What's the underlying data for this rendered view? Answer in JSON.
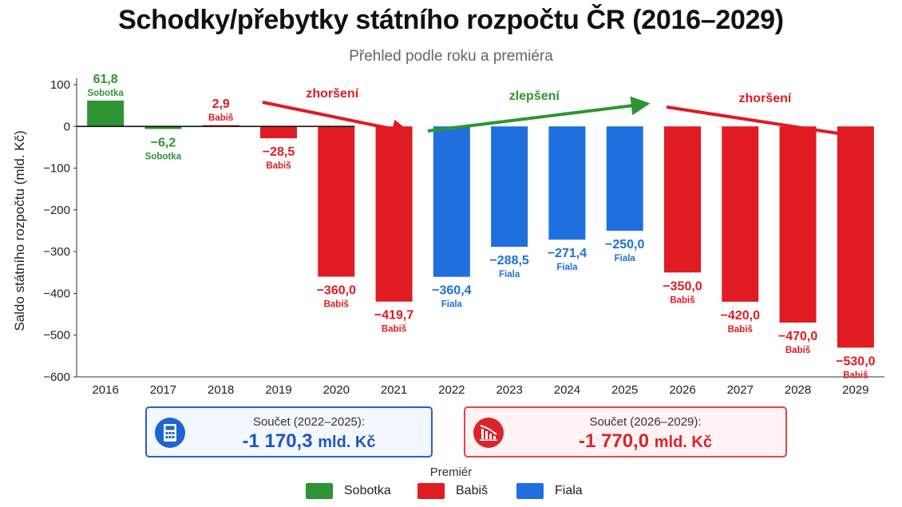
{
  "colors": {
    "Sobotka": "#2e9433",
    "Babiš": "#e01b22",
    "Fiala": "#1f6fde",
    "worse": "#e01b22",
    "better": "#2e9433"
  },
  "chart_data": {
    "type": "bar",
    "title": "Schodky/přebytky státního rozpočtu ČR (2016–2029)",
    "subtitle": "Přehled podle roku a premiéra",
    "ylabel": "Saldo státního rozpočtu (mld. Kč)",
    "xlabel": "",
    "ylim": [
      -600,
      100
    ],
    "yticks": [
      100,
      0,
      -100,
      -200,
      -300,
      -400,
      -500,
      -600
    ],
    "grid": false,
    "categories": [
      "2016",
      "2017",
      "2018",
      "2019",
      "2020",
      "2021",
      "2022",
      "2023",
      "2024",
      "2025",
      "2026",
      "2027",
      "2028",
      "2029"
    ],
    "values": [
      61.8,
      -6.2,
      2.9,
      -28.5,
      -360.0,
      -419.7,
      -360.4,
      -288.5,
      -271.4,
      -250.0,
      -350.0,
      -420.0,
      -470.0,
      -530.0
    ],
    "value_labels": [
      "61,8",
      "−6,2",
      "2,9",
      "−28,5",
      "−360,0",
      "−419,7",
      "−360,4",
      "−288,5",
      "−271,4",
      "−250,0",
      "−350,0",
      "−420,0",
      "−470,0",
      "−530,0"
    ],
    "premiers": [
      "Sobotka",
      "Sobotka",
      "Babiš",
      "Babiš",
      "Babiš",
      "Babiš",
      "Fiala",
      "Fiala",
      "Fiala",
      "Fiala",
      "Babiš",
      "Babiš",
      "Babiš",
      "Babiš"
    ],
    "legend": {
      "title": "Premiér",
      "placement": "bottom",
      "entries": [
        "Sobotka",
        "Babiš",
        "Fiala"
      ]
    },
    "annotations": [
      {
        "text": "zhoršení",
        "kind": "worse",
        "from": "2019",
        "to": "2021"
      },
      {
        "text": "zlepšení",
        "kind": "better",
        "from": "2022",
        "to": "2025"
      },
      {
        "text": "zhoršení",
        "kind": "worse",
        "from": "2026",
        "to": "2029"
      }
    ]
  },
  "summary": {
    "fiala": {
      "label": "Součet (2022–2025):",
      "value": "-1 170,3",
      "unit": "mld. Kč"
    },
    "babis": {
      "label": "Součet (2026–2029):",
      "value": "-1 770,0",
      "unit": "mld. Kč"
    }
  }
}
